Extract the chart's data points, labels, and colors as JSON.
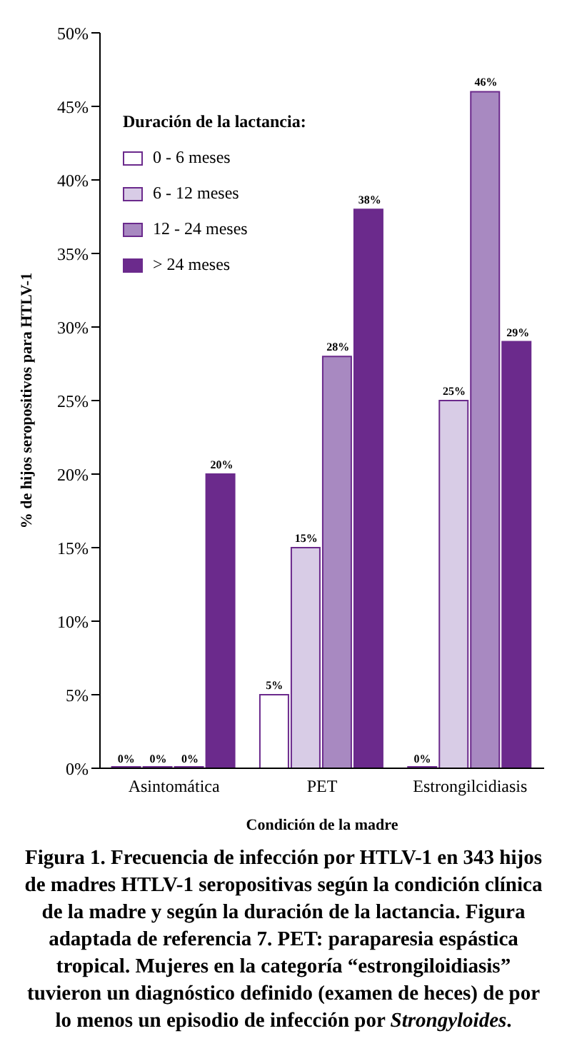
{
  "chart_data": {
    "type": "bar",
    "xlabel": "Condición de la madre",
    "ylabel": "% de hijos seropositivos para HTLV-1",
    "legend_title": "Duración de la lactancia:",
    "categories": [
      "Asintomática",
      "PET",
      "Estrongilcidiasis"
    ],
    "series": [
      {
        "name": "0 - 6 meses",
        "color": "#ffffff",
        "values": [
          0,
          5,
          0
        ],
        "value_labels": [
          "0%",
          "5%",
          "0%"
        ]
      },
      {
        "name": "6 - 12 meses",
        "color": "#d8cce6",
        "values": [
          0,
          15,
          25
        ],
        "value_labels": [
          "0%",
          "15%",
          "25%"
        ]
      },
      {
        "name": "12 - 24 meses",
        "color": "#a889c1",
        "values": [
          0,
          28,
          46
        ],
        "value_labels": [
          "0%",
          "28%",
          "46%"
        ]
      },
      {
        "name": "> 24 meses",
        "color": "#6b2a8c",
        "values": [
          20,
          38,
          29
        ],
        "value_labels": [
          "20%",
          "38%",
          "29%"
        ]
      }
    ],
    "ylim": [
      0,
      50
    ],
    "yticks": [
      {
        "value": 0,
        "label": "0%"
      },
      {
        "value": 5,
        "label": "5%"
      },
      {
        "value": 10,
        "label": "10%"
      },
      {
        "value": 15,
        "label": "15%"
      },
      {
        "value": 20,
        "label": "20%"
      },
      {
        "value": 25,
        "label": "25%"
      },
      {
        "value": 30,
        "label": "30%"
      },
      {
        "value": 35,
        "label": "35%"
      },
      {
        "value": 40,
        "label": "40%"
      },
      {
        "value": 45,
        "label": "45%"
      },
      {
        "value": 50,
        "label": "50%"
      }
    ],
    "grid": false,
    "legend": "top left",
    "annotations": [
      "Figura 1. Frecuencia de infección por HTLV-1 en 343 hijos de madres HTLV-1 seropositivas según la condición clínica de la madre y según la duración de la lactancia. Figura adaptada de referencia 7. PET: paraparesia espástica tropical. Mujeres en la categoría “estrongiloidiasis” tuvieron un diagnóstico definido (examen de heces) de por lo menos un episodio de infección por $_{}$Strongyloides."
    ]
  }
}
